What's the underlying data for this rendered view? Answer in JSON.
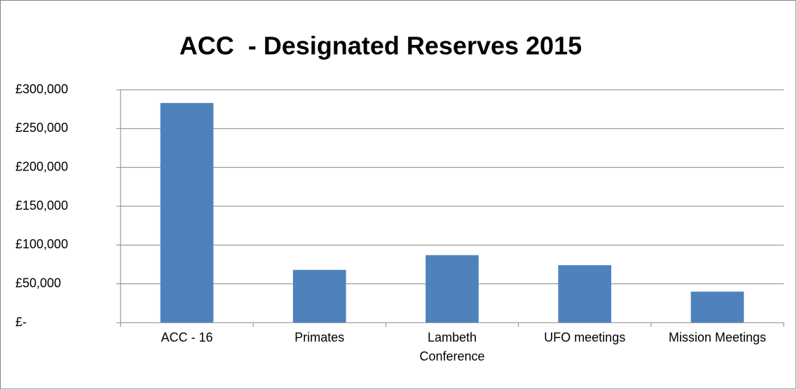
{
  "chart_data": {
    "type": "bar",
    "title": "ACC  - Designated Reserves 2015",
    "categories": [
      "ACC - 16",
      "Primates",
      "Lambeth Conference",
      "UFO meetings",
      "Mission Meetings"
    ],
    "values": [
      283000,
      68000,
      87000,
      74000,
      40000
    ],
    "color": "#4f81bd",
    "ylim": [
      0,
      300000
    ],
    "yticks": [
      {
        "value": 0,
        "label": "£-"
      },
      {
        "value": 50000,
        "label": "£50,000"
      },
      {
        "value": 100000,
        "label": "£100,000"
      },
      {
        "value": 150000,
        "label": "£150,000"
      },
      {
        "value": 200000,
        "label": "£200,000"
      },
      {
        "value": 250000,
        "label": "£250,000"
      },
      {
        "value": 300000,
        "label": "£300,000"
      }
    ],
    "grid": true
  }
}
